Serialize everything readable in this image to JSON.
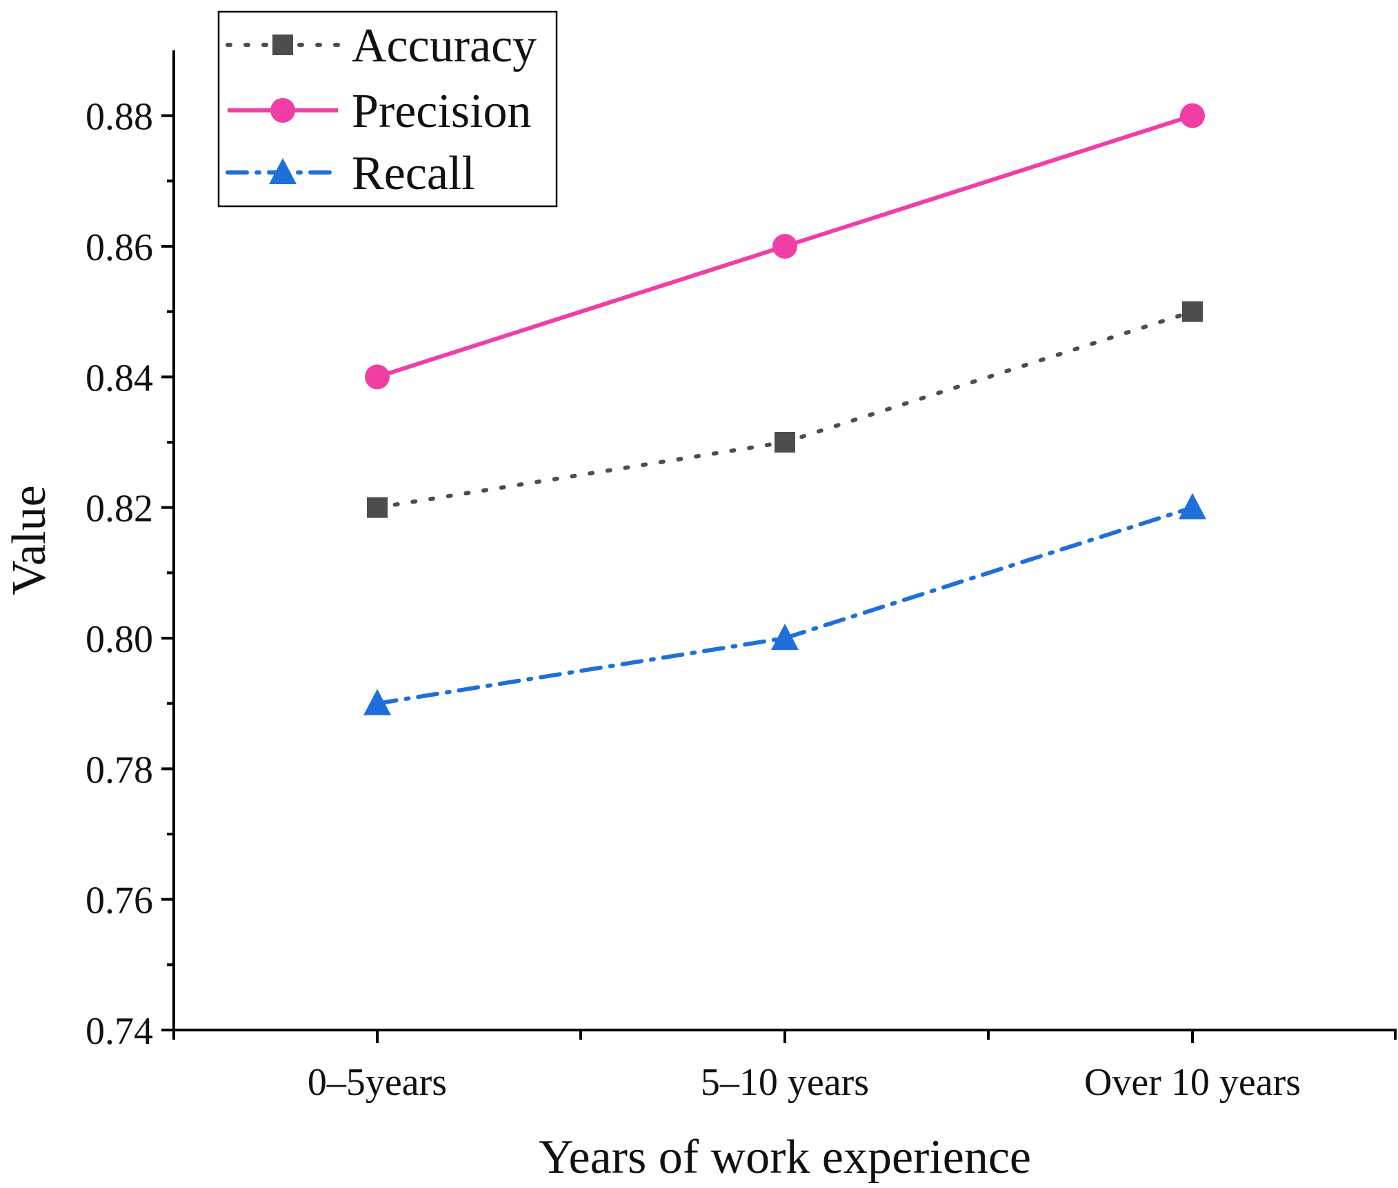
{
  "chart_data": {
    "type": "line",
    "categories": [
      "0–5years",
      "5–10 years",
      "Over 10 years"
    ],
    "series": [
      {
        "name": "Accuracy",
        "values": [
          0.82,
          0.83,
          0.85
        ],
        "color": "#4d4d4d",
        "marker": "square",
        "line_style": "dotted"
      },
      {
        "name": "Precision",
        "values": [
          0.84,
          0.86,
          0.88
        ],
        "color": "#f03ea6",
        "marker": "circle",
        "line_style": "solid"
      },
      {
        "name": "Recall",
        "values": [
          0.79,
          0.8,
          0.82
        ],
        "color": "#1e6fd9",
        "marker": "triangle",
        "line_style": "dash-dot"
      }
    ],
    "xlabel": "Years of work experience",
    "ylabel": "Value",
    "ylim": [
      0.74,
      0.89
    ],
    "yticks": [
      "0.74",
      "0.76",
      "0.78",
      "0.80",
      "0.82",
      "0.84",
      "0.86",
      "0.88"
    ],
    "legend_position": "top-left"
  }
}
